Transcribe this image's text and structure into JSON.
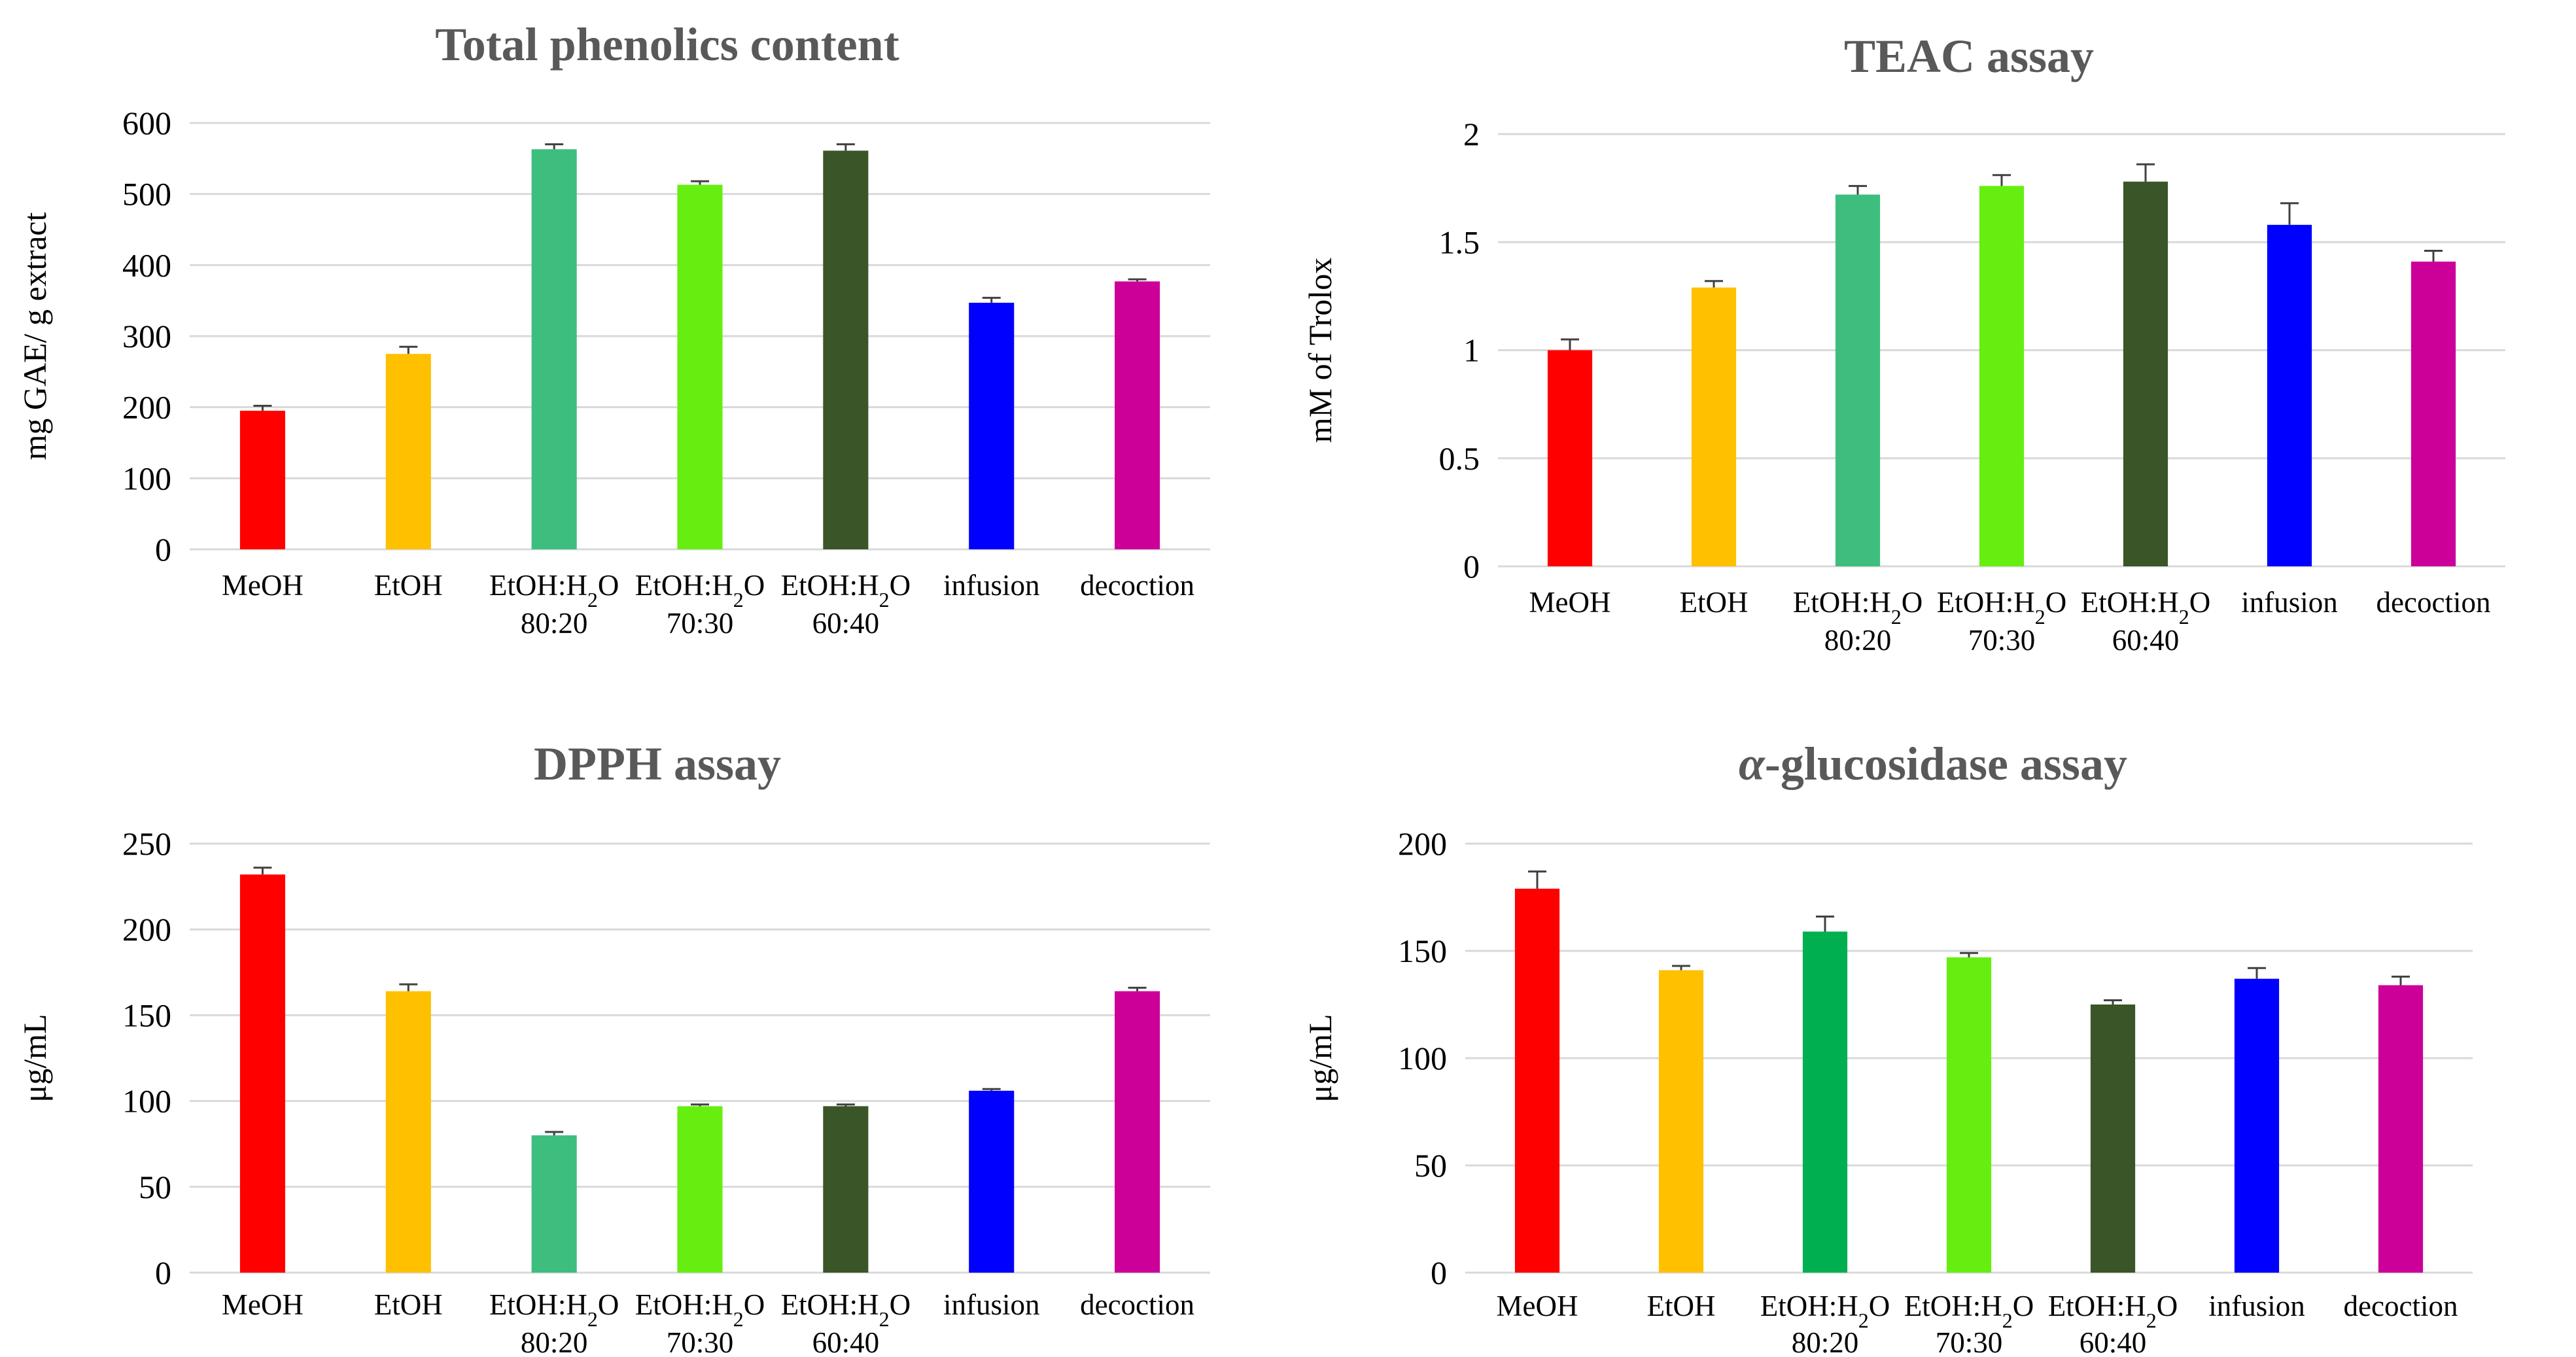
{
  "colors": [
    "#FF0000",
    "#FFC000",
    "#3DBE7E",
    "#66EE11",
    "#3A5528",
    "#0000FF",
    "#CC0099"
  ],
  "chart_data": [
    {
      "type": "bar",
      "title": "Total phenolics content",
      "title_prefix": "",
      "ylabel": "mg GAE/ g extract",
      "ylim": [
        0,
        600
      ],
      "yticks": [
        "0",
        "100",
        "200",
        "300",
        "400",
        "500",
        "600"
      ],
      "categories": [
        {
          "line1": "MeOH",
          "line2": ""
        },
        {
          "line1": "EtOH",
          "line2": ""
        },
        {
          "line1": "EtOH:H2O",
          "line2": "80:20"
        },
        {
          "line1": "EtOH:H2O",
          "line2": "70:30"
        },
        {
          "line1": "EtOH:H2O",
          "line2": "60:40"
        },
        {
          "line1": "infusion",
          "line2": ""
        },
        {
          "line1": "decoction",
          "line2": ""
        }
      ],
      "values": [
        195,
        275,
        563,
        513,
        561,
        347,
        377
      ],
      "errors": [
        7,
        10,
        7,
        5,
        9,
        7,
        3
      ],
      "colors": [
        "#FF0000",
        "#FFC000",
        "#3DBE7E",
        "#66EE11",
        "#3A5528",
        "#0000FF",
        "#CC0099"
      ]
    },
    {
      "type": "bar",
      "title": "TEAC assay",
      "title_prefix": "",
      "ylabel": "mM of Trolox",
      "ylim": [
        0,
        2
      ],
      "yticks": [
        "0",
        "0.5",
        "1",
        "1.5",
        "2"
      ],
      "categories": [
        {
          "line1": "MeOH",
          "line2": ""
        },
        {
          "line1": "EtOH",
          "line2": ""
        },
        {
          "line1": "EtOH:H2O",
          "line2": "80:20"
        },
        {
          "line1": "EtOH:H2O",
          "line2": "70:30"
        },
        {
          "line1": "EtOH:H2O",
          "line2": "60:40"
        },
        {
          "line1": "infusion",
          "line2": ""
        },
        {
          "line1": "decoction",
          "line2": ""
        }
      ],
      "values": [
        1.0,
        1.29,
        1.72,
        1.76,
        1.78,
        1.58,
        1.41
      ],
      "errors": [
        0.05,
        0.03,
        0.04,
        0.05,
        0.08,
        0.1,
        0.05
      ],
      "colors": [
        "#FF0000",
        "#FFC000",
        "#3DBE7E",
        "#66EE11",
        "#3A5528",
        "#0000FF",
        "#CC0099"
      ]
    },
    {
      "type": "bar",
      "title": "DPPH assay",
      "title_prefix": "",
      "ylabel": "μg/mL",
      "ylim": [
        0,
        250
      ],
      "yticks": [
        "0",
        "50",
        "100",
        "150",
        "200",
        "250"
      ],
      "categories": [
        {
          "line1": "MeOH",
          "line2": ""
        },
        {
          "line1": "EtOH",
          "line2": ""
        },
        {
          "line1": "EtOH:H2O",
          "line2": "80:20"
        },
        {
          "line1": "EtOH:H2O",
          "line2": "70:30"
        },
        {
          "line1": "EtOH:H2O",
          "line2": "60:40"
        },
        {
          "line1": "infusion",
          "line2": ""
        },
        {
          "line1": "decoction",
          "line2": ""
        }
      ],
      "values": [
        232,
        164,
        80,
        97,
        97,
        106,
        164
      ],
      "errors": [
        4,
        4,
        2,
        1,
        1,
        1,
        2
      ],
      "colors": [
        "#FF0000",
        "#FFC000",
        "#3DBE7E",
        "#66EE11",
        "#3A5528",
        "#0000FF",
        "#CC0099"
      ]
    },
    {
      "type": "bar",
      "title": "-glucosidase assay",
      "title_prefix": "α",
      "ylabel": "μg/mL",
      "ylim": [
        0,
        200
      ],
      "yticks": [
        "0",
        "50",
        "100",
        "150",
        "200"
      ],
      "categories": [
        {
          "line1": "MeOH",
          "line2": ""
        },
        {
          "line1": "EtOH",
          "line2": ""
        },
        {
          "line1": "EtOH:H2O",
          "line2": "80:20"
        },
        {
          "line1": "EtOH:H2O",
          "line2": "70:30"
        },
        {
          "line1": "EtOH:H2O",
          "line2": "60:40"
        },
        {
          "line1": "infusion",
          "line2": ""
        },
        {
          "line1": "decoction",
          "line2": ""
        }
      ],
      "values": [
        179,
        141,
        159,
        147,
        125,
        137,
        134
      ],
      "errors": [
        8,
        2,
        7,
        2,
        2,
        5,
        4
      ],
      "colors": [
        "#FF0000",
        "#FFC000",
        "#00B050",
        "#66EE11",
        "#3A5528",
        "#0000FF",
        "#CC0099"
      ]
    }
  ]
}
